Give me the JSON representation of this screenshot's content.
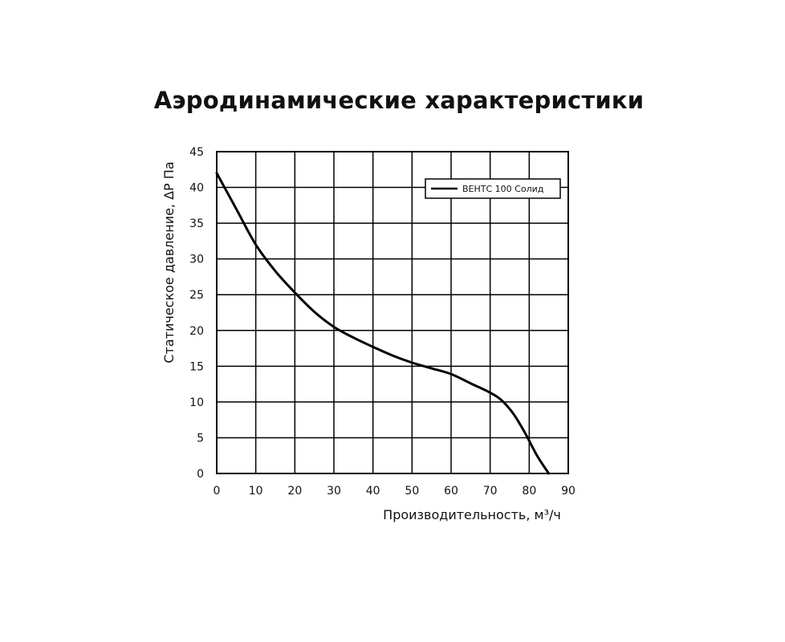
{
  "chart_data": {
    "type": "line",
    "title": "Аэродинамические характеристики",
    "xlabel": "Производительность, м³/ч",
    "ylabel": "Статическое давление, ΔР Па",
    "xlim": [
      0,
      90
    ],
    "ylim": [
      0,
      45
    ],
    "xticks": [
      0,
      10,
      20,
      30,
      40,
      50,
      60,
      70,
      80,
      90
    ],
    "yticks": [
      0,
      5,
      10,
      15,
      20,
      25,
      30,
      35,
      40,
      45
    ],
    "grid": true,
    "legend_position": "top-right",
    "series": [
      {
        "name": "ВЕНТС 100 Солид",
        "color": "#000000",
        "x": [
          0,
          5,
          10,
          15,
          20,
          25,
          30,
          35,
          40,
          45,
          50,
          55,
          60,
          65,
          70,
          73,
          76,
          79,
          82,
          85
        ],
        "y": [
          42,
          37,
          32,
          28.3,
          25.3,
          22.6,
          20.5,
          19,
          17.7,
          16.5,
          15.5,
          14.7,
          13.9,
          12.6,
          11.3,
          10.2,
          8.3,
          5.6,
          2.5,
          0
        ]
      }
    ]
  }
}
